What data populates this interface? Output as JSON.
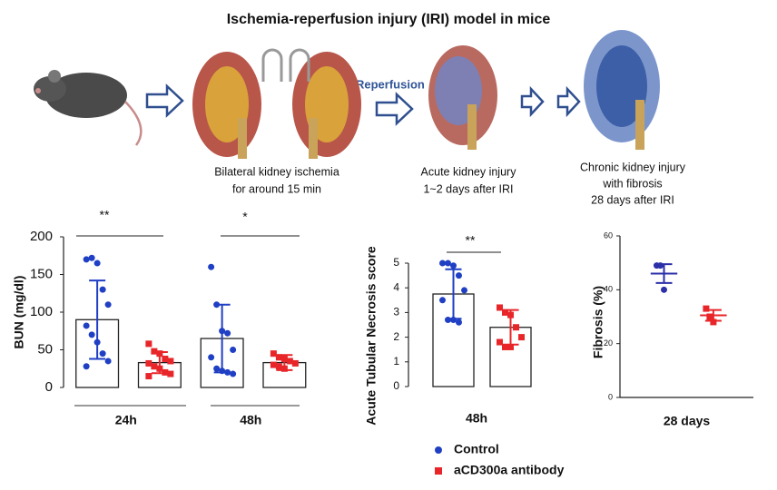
{
  "title": "Ischemia-reperfusion injury (IRI) model in mice",
  "diagram": {
    "reperfusion": "Reperfusion",
    "steps": [
      [
        "Bilateral kidney ischemia",
        "for around 15 min"
      ],
      [
        "Acute kidney injury",
        "1~2 days after IRI"
      ],
      [
        "Chronic kidney injury",
        "with fibrosis",
        "28 days after IRI"
      ]
    ]
  },
  "chart_data": [
    {
      "type": "bar",
      "y_label": "BUN (mg/dl)",
      "categories": [
        "24h",
        "48h"
      ],
      "ylim": [
        0,
        200
      ],
      "yticks": [
        0,
        50,
        100,
        150,
        200
      ],
      "annotations": [
        "**",
        "*"
      ],
      "series": [
        {
          "name": "Control",
          "color": "#1f3fc4",
          "values": [
            90,
            65
          ],
          "errors": [
            52,
            45
          ],
          "points": [
            [
              170,
              172,
              165,
              130,
              110,
              82,
              70,
              60,
              45,
              35,
              28
            ],
            [
              160,
              110,
              75,
              72,
              50,
              40,
              25,
              22,
              20,
              18
            ]
          ]
        },
        {
          "name": "aCD300a antibody",
          "color": "#e8262a",
          "values": [
            33,
            33
          ],
          "errors": [
            14,
            10
          ],
          "points": [
            [
              58,
              48,
              45,
              38,
              35,
              32,
              28,
              25,
              20,
              18,
              15
            ],
            [
              45,
              40,
              38,
              35,
              32,
              30,
              28,
              25
            ]
          ]
        }
      ]
    },
    {
      "type": "bar",
      "y_label": "Acute Tubular Necrosis score",
      "categories": [
        "48h"
      ],
      "ylim": [
        0,
        5
      ],
      "yticks": [
        0,
        1,
        2,
        3,
        4,
        5
      ],
      "annotations": [
        "**"
      ],
      "series": [
        {
          "name": "Control",
          "color": "#1f3fc4",
          "values": [
            3.75
          ],
          "errors": [
            1.0
          ],
          "points": [
            [
              5,
              5,
              4.9,
              4.5,
              3.9,
              3.5,
              2.7,
              2.7,
              2.6
            ]
          ]
        },
        {
          "name": "aCD300a antibody",
          "color": "#e8262a",
          "values": [
            2.4
          ],
          "errors": [
            0.7
          ],
          "points": [
            [
              3.2,
              3.0,
              2.9,
              2.4,
              2.0,
              1.8,
              1.6,
              1.6
            ]
          ]
        }
      ]
    },
    {
      "type": "scatter",
      "y_label": "Fibrosis (%)",
      "categories": [
        "28 days"
      ],
      "ylim": [
        0,
        60
      ],
      "yticks": [
        0,
        20,
        40,
        60
      ],
      "series": [
        {
          "name": "Control",
          "color": "#2b2fa8",
          "values": [
            46
          ],
          "errors": [
            3.5
          ],
          "points": [
            [
              49,
              49,
              40
            ]
          ]
        },
        {
          "name": "aCD300a antibody",
          "color": "#e8262a",
          "values": [
            30.5
          ],
          "errors": [
            2
          ],
          "points": [
            [
              33,
              30,
              28
            ]
          ]
        }
      ]
    }
  ]
}
